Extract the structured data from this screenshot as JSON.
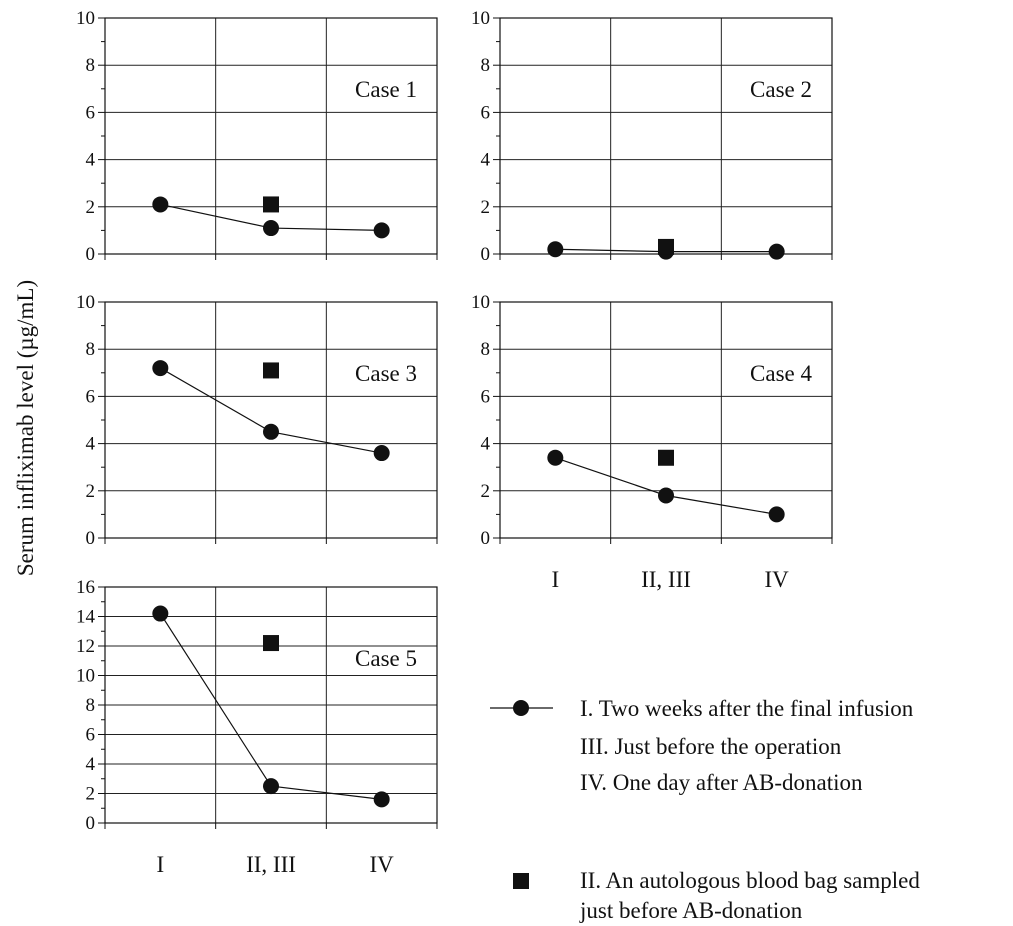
{
  "chart_data": [
    {
      "type": "line",
      "title": "Case 1",
      "categories": [
        "I",
        "II, III",
        "IV"
      ],
      "ylim": [
        0,
        10
      ],
      "yticks": [
        0,
        2,
        4,
        6,
        8,
        10
      ],
      "grid": true,
      "series": [
        {
          "marker": "circle",
          "values": [
            2.1,
            1.1,
            1.0
          ]
        },
        {
          "marker": "square",
          "values": [
            null,
            2.1,
            null
          ]
        }
      ]
    },
    {
      "type": "line",
      "title": "Case 2",
      "categories": [
        "I",
        "II, III",
        "IV"
      ],
      "ylim": [
        0,
        10
      ],
      "yticks": [
        0,
        2,
        4,
        6,
        8,
        10
      ],
      "grid": true,
      "series": [
        {
          "marker": "circle",
          "values": [
            0.2,
            0.1,
            0.1
          ]
        },
        {
          "marker": "square",
          "values": [
            null,
            0.3,
            null
          ]
        }
      ]
    },
    {
      "type": "line",
      "title": "Case 3",
      "categories": [
        "I",
        "II, III",
        "IV"
      ],
      "ylim": [
        0,
        10
      ],
      "yticks": [
        0,
        2,
        4,
        6,
        8,
        10
      ],
      "grid": true,
      "series": [
        {
          "marker": "circle",
          "values": [
            7.2,
            4.5,
            3.6
          ]
        },
        {
          "marker": "square",
          "values": [
            null,
            7.1,
            null
          ]
        }
      ]
    },
    {
      "type": "line",
      "title": "Case 4",
      "categories": [
        "I",
        "II, III",
        "IV"
      ],
      "ylim": [
        0,
        10
      ],
      "yticks": [
        0,
        2,
        4,
        6,
        8,
        10
      ],
      "grid": true,
      "series": [
        {
          "marker": "circle",
          "values": [
            3.4,
            1.8,
            1.0
          ]
        },
        {
          "marker": "square",
          "values": [
            null,
            3.4,
            null
          ]
        }
      ]
    },
    {
      "type": "line",
      "title": "Case 5",
      "categories": [
        "I",
        "II, III",
        "IV"
      ],
      "ylim": [
        0,
        16
      ],
      "yticks": [
        0,
        2,
        4,
        6,
        8,
        10,
        12,
        14,
        16
      ],
      "grid": true,
      "series": [
        {
          "marker": "circle",
          "values": [
            14.2,
            2.5,
            1.6
          ]
        },
        {
          "marker": "square",
          "values": [
            null,
            12.2,
            null
          ]
        }
      ]
    }
  ],
  "ylabel": "Serum infliximab level (µg/mL)",
  "legend": {
    "circle_lines": [
      "I. Two weeks after the final infusion",
      "III. Just before the operation",
      "IV. One day after AB-donation"
    ],
    "square_lines": [
      "II. An autologous blood bag sampled",
      "just before AB-donation"
    ]
  },
  "colors": {
    "ink": "#111111",
    "grid": "#222222"
  }
}
